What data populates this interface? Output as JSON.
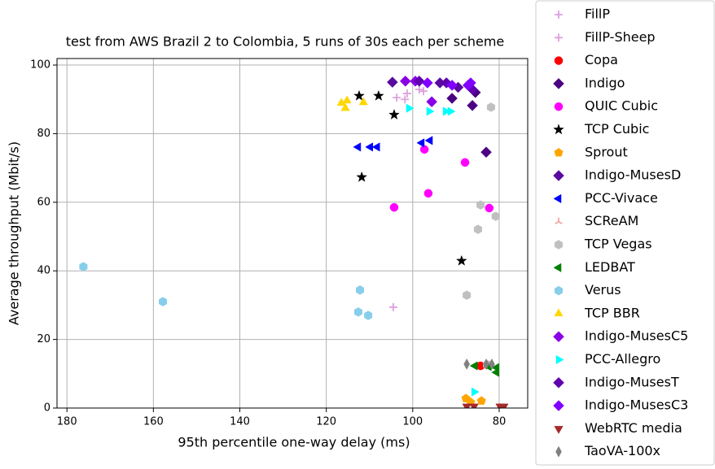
{
  "chart_data": {
    "type": "scatter",
    "title": "test from AWS Brazil 2 to Colombia, 5 runs of 30s each per scheme",
    "x_label": "95th percentile one-way delay (ms)",
    "y_label": "Average throughput (Mbit/s)",
    "xlim": [
      182.3,
      73.4
    ],
    "ylim": [
      0,
      101.9
    ],
    "xticks": [
      180,
      160,
      140,
      120,
      100,
      80
    ],
    "yticks": [
      0,
      20,
      40,
      60,
      80,
      100
    ],
    "grid": true,
    "legend": "upper right",
    "series": [
      {
        "name": "FillP",
        "color": "#dda0dd",
        "marker": "plus",
        "x": [
          103.7,
          101.3,
          104.5,
          98.5
        ],
        "values": [
          90.5,
          91.7,
          29.4,
          92.9
        ]
      },
      {
        "name": "FillP-Sheep",
        "color": "#dda0dd",
        "marker": "plus",
        "x": [
          101.8,
          97.5
        ],
        "values": [
          90,
          92.4
        ]
      },
      {
        "name": "Copa",
        "color": "#ff0000",
        "marker": "circle",
        "x": [
          84.3,
          82.8
        ],
        "values": [
          12.3,
          12.6
        ]
      },
      {
        "name": "Indigo",
        "color": "#4b0082",
        "marker": "diamond",
        "x": [
          86.2,
          83,
          90.9,
          85.5
        ],
        "values": [
          88.2,
          74.6,
          90.3,
          92
        ]
      },
      {
        "name": "QUIC Cubic",
        "color": "#ff00ff",
        "marker": "circle",
        "x": [
          97.3,
          87.9,
          96.4,
          104.3,
          82.3
        ],
        "values": [
          75.4,
          71.6,
          62.6,
          58.5,
          58.3
        ]
      },
      {
        "name": "TCP Cubic",
        "color": "#000000",
        "marker": "star",
        "x": [
          112.4,
          107.9,
          104.3,
          111.8,
          88.7
        ],
        "values": [
          91,
          91,
          85.5,
          67.3,
          42.9
        ]
      },
      {
        "name": "Sprout",
        "color": "#ffa500",
        "marker": "pentagon",
        "x": [
          87.7,
          84.1,
          86.6
        ],
        "values": [
          2.8,
          2.1,
          1.7
        ]
      },
      {
        "name": "Indigo-MusesD",
        "color": "#5a0aa0",
        "marker": "diamond",
        "x": [
          104.7,
          93.7,
          89.5
        ],
        "values": [
          95,
          94.8,
          93.5
        ]
      },
      {
        "name": "PCC-Vivace",
        "color": "#0000ff",
        "marker": "tri-left",
        "x": [
          112.6,
          109.8,
          108.2,
          97.9,
          96
        ],
        "values": [
          76.1,
          76.1,
          76.1,
          77.3,
          78
        ]
      },
      {
        "name": "SCReAM",
        "color": "#f4a6a6",
        "marker": "y",
        "x": [
          82
        ],
        "values": [
          12.5
        ]
      },
      {
        "name": "TCP Vegas",
        "color": "#c0c0c0",
        "marker": "hexagon",
        "x": [
          81.9,
          84.3,
          80.8,
          84.9,
          87.5,
          82.8
        ],
        "values": [
          87.7,
          59.2,
          55.9,
          52.1,
          32.9,
          12.6
        ]
      },
      {
        "name": "LEDBAT",
        "color": "#008000",
        "marker": "tri-left",
        "x": [
          85.6,
          82.4,
          80.6,
          80.6
        ],
        "values": [
          12.3,
          12.1,
          11.8,
          10.4
        ]
      },
      {
        "name": "Verus",
        "color": "#87ceeb",
        "marker": "hexagon",
        "x": [
          176.2,
          157.8,
          112.2,
          112.6,
          110.3
        ],
        "values": [
          41.2,
          31,
          34.4,
          28,
          27
        ]
      },
      {
        "name": "TCP BBR",
        "color": "#ffd700",
        "marker": "tri-up",
        "x": [
          116.5,
          115.6,
          115.2,
          111.4
        ],
        "values": [
          88.9,
          87.4,
          89.6,
          89.1
        ]
      },
      {
        "name": "Indigo-MusesC5",
        "color": "#8a00e6",
        "marker": "diamond",
        "x": [
          101.7,
          99.4,
          95.6
        ],
        "values": [
          95.3,
          95.3,
          89.3
        ]
      },
      {
        "name": "PCC-Allegro",
        "color": "#00ffff",
        "marker": "tri-right",
        "x": [
          100.9,
          96.2,
          92.4,
          91.3,
          85.8
        ],
        "values": [
          87.4,
          86.5,
          86.5,
          86.5,
          4.7
        ]
      },
      {
        "name": "Indigo-MusesT",
        "color": "#6000b0",
        "marker": "diamond",
        "x": [
          98.5,
          92.2,
          86.2
        ],
        "values": [
          95.3,
          94.8,
          92.9
        ]
      },
      {
        "name": "Indigo-MusesC3",
        "color": "#8000ff",
        "marker": "diamond",
        "x": [
          96.6,
          90.9,
          87.2,
          86.6
        ],
        "values": [
          94.8,
          94.1,
          94.1,
          94.8
        ]
      },
      {
        "name": "WebRTC media",
        "color": "#a52a2a",
        "marker": "tri-down",
        "x": [
          87.5,
          85.8,
          79.8,
          78.9
        ],
        "values": [
          0.5,
          0.5,
          0.5,
          0.5
        ]
      },
      {
        "name": "TaoVA-100x",
        "color": "#808080",
        "marker": "thin-diamond",
        "x": [
          87.5,
          83,
          81.7
        ],
        "values": [
          12.8,
          12.8,
          12.8
        ]
      }
    ]
  }
}
